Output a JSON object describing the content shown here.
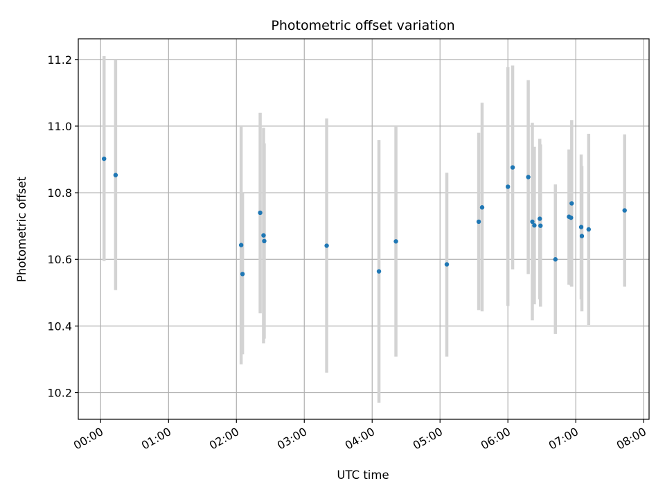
{
  "chart_data": {
    "type": "scatter",
    "title": "Photometric offset variation",
    "xlabel": "UTC time",
    "ylabel": "Photometric offset",
    "x_unit": "hours UTC",
    "xlim": [
      -0.33,
      8.08
    ],
    "ylim": [
      10.12,
      11.262
    ],
    "x_ticks": [
      0,
      1,
      2,
      3,
      4,
      5,
      6,
      7,
      8
    ],
    "x_tick_labels": [
      "00:00",
      "01:00",
      "02:00",
      "03:00",
      "04:00",
      "05:00",
      "06:00",
      "07:00",
      "08:00"
    ],
    "y_ticks": [
      10.2,
      10.4,
      10.6,
      10.8,
      11.0,
      11.2
    ],
    "y_tick_labels": [
      "10.2",
      "10.4",
      "10.6",
      "10.8",
      "11.0",
      "11.2"
    ],
    "grid": true,
    "point_color": "#1f77b4",
    "errorbar_color": "#d3d3d3",
    "points": [
      {
        "x": 0.05,
        "y": 10.902,
        "lo": 10.595,
        "hi": 11.21
      },
      {
        "x": 0.22,
        "y": 10.853,
        "lo": 10.508,
        "hi": 11.2
      },
      {
        "x": 2.07,
        "y": 10.643,
        "lo": 10.285,
        "hi": 11.0
      },
      {
        "x": 2.09,
        "y": 10.556,
        "lo": 10.315,
        "hi": 10.8
      },
      {
        "x": 2.35,
        "y": 10.74,
        "lo": 10.438,
        "hi": 11.04
      },
      {
        "x": 2.4,
        "y": 10.672,
        "lo": 10.348,
        "hi": 10.995
      },
      {
        "x": 2.41,
        "y": 10.655,
        "lo": 10.362,
        "hi": 10.948
      },
      {
        "x": 3.33,
        "y": 10.641,
        "lo": 10.26,
        "hi": 11.023
      },
      {
        "x": 4.1,
        "y": 10.564,
        "lo": 10.17,
        "hi": 10.958
      },
      {
        "x": 4.35,
        "y": 10.654,
        "lo": 10.308,
        "hi": 11.0
      },
      {
        "x": 5.1,
        "y": 10.585,
        "lo": 10.308,
        "hi": 10.86
      },
      {
        "x": 5.57,
        "y": 10.713,
        "lo": 10.448,
        "hi": 10.98
      },
      {
        "x": 5.62,
        "y": 10.756,
        "lo": 10.444,
        "hi": 11.07
      },
      {
        "x": 6.0,
        "y": 10.818,
        "lo": 10.46,
        "hi": 11.177
      },
      {
        "x": 6.07,
        "y": 10.876,
        "lo": 10.57,
        "hi": 11.182
      },
      {
        "x": 6.3,
        "y": 10.847,
        "lo": 10.556,
        "hi": 11.138
      },
      {
        "x": 6.36,
        "y": 10.713,
        "lo": 10.417,
        "hi": 11.01
      },
      {
        "x": 6.39,
        "y": 10.702,
        "lo": 10.465,
        "hi": 10.938
      },
      {
        "x": 6.47,
        "y": 10.722,
        "lo": 10.48,
        "hi": 10.962
      },
      {
        "x": 6.48,
        "y": 10.701,
        "lo": 10.458,
        "hi": 10.945
      },
      {
        "x": 6.7,
        "y": 10.6,
        "lo": 10.376,
        "hi": 10.825
      },
      {
        "x": 6.9,
        "y": 10.728,
        "lo": 10.524,
        "hi": 10.93
      },
      {
        "x": 6.93,
        "y": 10.725,
        "lo": 10.522,
        "hi": 10.928
      },
      {
        "x": 6.94,
        "y": 10.768,
        "lo": 10.518,
        "hi": 11.018
      },
      {
        "x": 7.08,
        "y": 10.697,
        "lo": 10.48,
        "hi": 10.915
      },
      {
        "x": 7.09,
        "y": 10.67,
        "lo": 10.444,
        "hi": 10.88
      },
      {
        "x": 7.19,
        "y": 10.69,
        "lo": 10.403,
        "hi": 10.977
      },
      {
        "x": 7.72,
        "y": 10.747,
        "lo": 10.518,
        "hi": 10.975
      }
    ]
  }
}
